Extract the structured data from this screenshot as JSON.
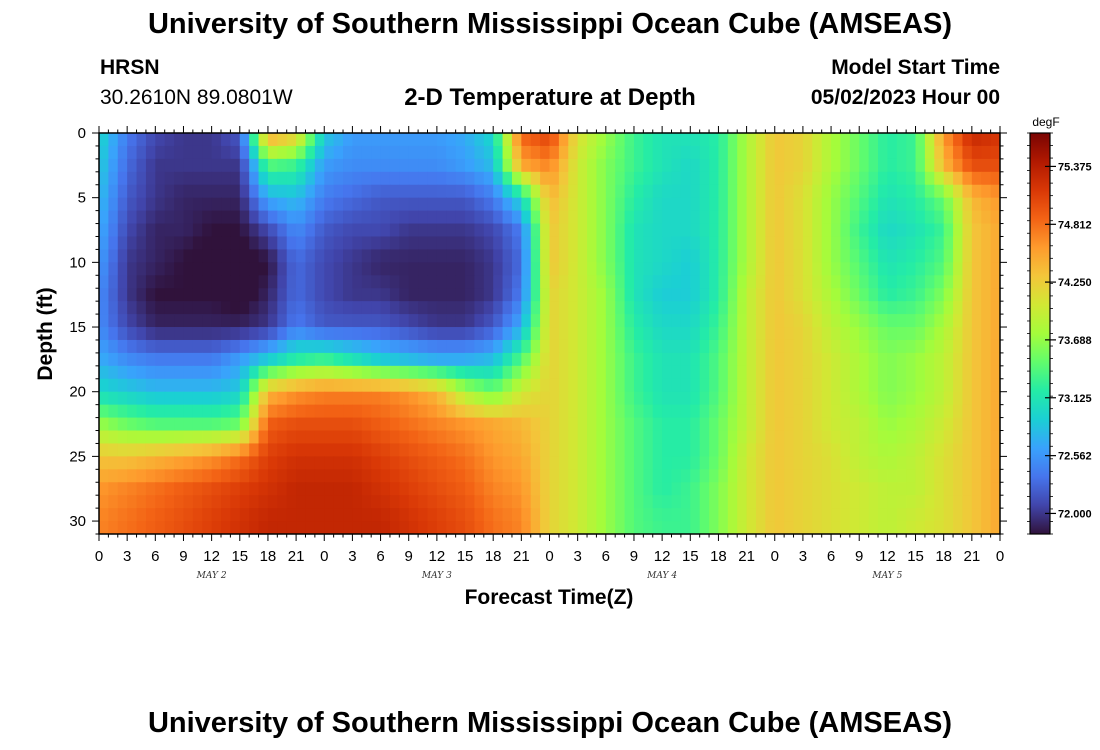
{
  "header": {
    "title": "University of Southern Mississippi Ocean Cube (AMSEAS)",
    "station": "HRSN",
    "coordinates": "30.2610N  89.0801W",
    "subtitle": "2-D Temperature at Depth",
    "model_start_label": "Model Start Time",
    "model_start_value": "05/02/2023 Hour 00"
  },
  "footer": {
    "title": "University of Southern Mississippi Ocean Cube (AMSEAS)"
  },
  "chart_data": {
    "type": "heatmap",
    "xlabel": "Forecast Time(Z)",
    "ylabel": "Depth (ft)",
    "x_tick_labels": [
      "0",
      "3",
      "6",
      "9",
      "12",
      "15",
      "18",
      "21",
      "0",
      "3",
      "6",
      "9",
      "12",
      "15",
      "18",
      "21",
      "0",
      "3",
      "6",
      "9",
      "12",
      "15",
      "18",
      "21",
      "0",
      "3",
      "6",
      "9",
      "12",
      "15",
      "18",
      "21",
      "0"
    ],
    "x_range_hours": [
      0,
      96
    ],
    "date_labels": [
      {
        "text": "MAY 2",
        "hour": 12
      },
      {
        "text": "MAY 3",
        "hour": 36
      },
      {
        "text": "MAY 4",
        "hour": 60
      },
      {
        "text": "MAY 5",
        "hour": 84
      }
    ],
    "y_ticks": [
      0,
      5,
      10,
      15,
      20,
      25,
      30
    ],
    "y_range": [
      0,
      31
    ],
    "y_inverted": true,
    "colorbar": {
      "unit": "degF",
      "min": 71.8,
      "max": 75.7,
      "tick_values": [
        72.0,
        72.562,
        73.125,
        73.688,
        74.25,
        74.812,
        75.375
      ],
      "tick_labels": [
        "72.000",
        "72.562",
        "73.125",
        "73.688",
        "74.250",
        "74.812",
        "75.375"
      ],
      "colors": [
        "#30123b",
        "#4145ab",
        "#4675ed",
        "#39a2fc",
        "#1bcfd4",
        "#24eca6",
        "#61fc6c",
        "#a4fc3b",
        "#d1e834",
        "#f3c63a",
        "#fe9b2d",
        "#f36315",
        "#d93806",
        "#b11901",
        "#7a0402"
      ]
    },
    "grid": false,
    "temperature_rows_degF": {
      "depths_ft": [
        0,
        2.5,
        5,
        7.5,
        10,
        12.5,
        15,
        17.5,
        20,
        22.5,
        25,
        27.5,
        30,
        31
      ],
      "hours": [
        0,
        3,
        6,
        9,
        12,
        15,
        18,
        21,
        24,
        27,
        30,
        33,
        36,
        39,
        42,
        45,
        48,
        51,
        54,
        57,
        60,
        63,
        66,
        69,
        72,
        75,
        78,
        81,
        84,
        87,
        90,
        93,
        96
      ],
      "values": [
        [
          73.0,
          72.4,
          72.1,
          72.0,
          72.0,
          72.2,
          74.6,
          74.3,
          72.9,
          72.6,
          72.6,
          72.6,
          72.6,
          72.7,
          73.0,
          74.9,
          75.1,
          74.1,
          73.7,
          73.3,
          73.1,
          73.1,
          73.2,
          73.8,
          74.3,
          74.2,
          73.8,
          73.5,
          73.2,
          73.3,
          74.6,
          75.3,
          75.2
        ],
        [
          72.9,
          72.3,
          72.0,
          72.0,
          72.0,
          72.0,
          73.4,
          73.3,
          72.6,
          72.5,
          72.5,
          72.5,
          72.5,
          72.6,
          72.8,
          74.5,
          74.7,
          74.0,
          73.6,
          73.3,
          73.1,
          73.0,
          73.2,
          73.8,
          74.3,
          74.2,
          73.8,
          73.5,
          73.2,
          73.3,
          74.4,
          75.0,
          75.0
        ],
        [
          72.8,
          72.2,
          72.0,
          71.9,
          71.9,
          71.9,
          72.7,
          72.8,
          72.4,
          72.3,
          72.2,
          72.2,
          72.2,
          72.2,
          72.4,
          73.0,
          74.4,
          74.0,
          73.6,
          73.2,
          73.0,
          73.0,
          73.2,
          73.8,
          74.3,
          74.1,
          73.7,
          73.4,
          73.1,
          73.2,
          73.5,
          74.4,
          74.6
        ],
        [
          72.7,
          72.1,
          71.9,
          71.9,
          71.8,
          71.8,
          72.1,
          72.5,
          72.2,
          72.1,
          72.1,
          72.0,
          72.0,
          72.0,
          72.1,
          72.4,
          74.3,
          74.0,
          73.6,
          73.1,
          73.0,
          73.0,
          73.2,
          73.8,
          74.3,
          74.1,
          73.7,
          73.3,
          73.0,
          73.1,
          73.3,
          74.3,
          74.5
        ],
        [
          72.6,
          72.0,
          71.9,
          71.8,
          71.7,
          71.7,
          71.8,
          72.3,
          72.1,
          72.0,
          71.9,
          71.9,
          71.9,
          71.9,
          72.0,
          72.3,
          74.3,
          74.0,
          73.6,
          73.1,
          73.0,
          72.9,
          73.2,
          73.8,
          74.3,
          74.1,
          73.7,
          73.4,
          73.1,
          73.2,
          73.4,
          74.3,
          74.5
        ],
        [
          72.5,
          72.0,
          71.8,
          71.8,
          71.8,
          71.7,
          71.9,
          72.3,
          72.1,
          72.0,
          72.0,
          71.9,
          71.9,
          71.9,
          72.0,
          72.4,
          74.2,
          74.0,
          73.7,
          73.1,
          72.9,
          72.9,
          73.2,
          73.9,
          74.3,
          74.1,
          73.8,
          73.5,
          73.2,
          73.3,
          73.6,
          74.3,
          74.5
        ],
        [
          72.5,
          72.1,
          71.9,
          71.9,
          71.9,
          71.9,
          72.0,
          72.4,
          72.2,
          72.2,
          72.2,
          72.1,
          72.0,
          72.0,
          72.2,
          72.7,
          74.2,
          74.0,
          73.7,
          73.2,
          73.0,
          73.0,
          73.3,
          73.9,
          74.3,
          74.2,
          73.9,
          73.7,
          73.5,
          73.5,
          73.8,
          74.3,
          74.5
        ],
        [
          72.7,
          72.5,
          72.4,
          72.4,
          72.4,
          72.6,
          72.9,
          73.2,
          73.3,
          73.1,
          72.9,
          72.8,
          72.7,
          72.7,
          72.8,
          73.4,
          74.2,
          74.0,
          73.7,
          73.3,
          73.1,
          73.1,
          73.4,
          73.9,
          74.3,
          74.2,
          74.0,
          73.8,
          73.6,
          73.7,
          73.9,
          74.3,
          74.5
        ],
        [
          73.0,
          72.9,
          72.8,
          72.8,
          72.8,
          72.9,
          74.4,
          74.6,
          74.7,
          74.7,
          74.7,
          74.6,
          74.4,
          73.8,
          73.5,
          74.0,
          74.2,
          74.0,
          73.7,
          73.3,
          73.1,
          73.1,
          73.4,
          73.9,
          74.3,
          74.2,
          74.0,
          73.8,
          73.6,
          73.7,
          73.9,
          74.3,
          74.5
        ],
        [
          73.7,
          73.5,
          73.4,
          73.4,
          73.4,
          73.5,
          74.9,
          75.0,
          75.0,
          75.0,
          74.9,
          74.8,
          74.7,
          74.6,
          74.5,
          74.4,
          74.2,
          74.0,
          73.7,
          73.4,
          73.2,
          73.2,
          73.5,
          73.9,
          74.3,
          74.2,
          74.0,
          73.9,
          73.7,
          73.8,
          74.0,
          74.3,
          74.5
        ],
        [
          74.3,
          74.3,
          74.4,
          74.5,
          74.6,
          74.8,
          75.1,
          75.2,
          75.2,
          75.2,
          75.1,
          75.0,
          74.9,
          74.8,
          74.6,
          74.5,
          74.2,
          74.0,
          73.7,
          73.4,
          73.2,
          73.2,
          73.5,
          74.0,
          74.3,
          74.2,
          74.1,
          73.9,
          73.8,
          73.9,
          74.1,
          74.3,
          74.5
        ],
        [
          74.6,
          74.7,
          74.8,
          74.9,
          75.0,
          75.1,
          75.2,
          75.3,
          75.3,
          75.3,
          75.2,
          75.1,
          75.0,
          74.9,
          74.7,
          74.6,
          74.2,
          74.0,
          73.7,
          73.4,
          73.2,
          73.3,
          73.6,
          74.0,
          74.3,
          74.2,
          74.1,
          74.0,
          73.9,
          73.9,
          74.1,
          74.3,
          74.5
        ],
        [
          74.7,
          74.8,
          74.9,
          75.0,
          75.1,
          75.2,
          75.3,
          75.3,
          75.3,
          75.3,
          75.3,
          75.2,
          75.1,
          75.0,
          74.8,
          74.7,
          74.2,
          74.0,
          73.7,
          73.4,
          73.3,
          73.3,
          73.6,
          74.0,
          74.3,
          74.2,
          74.1,
          74.0,
          73.9,
          74.0,
          74.1,
          74.3,
          74.5
        ],
        [
          74.7,
          74.8,
          74.9,
          75.0,
          75.1,
          75.2,
          75.3,
          75.3,
          75.3,
          75.3,
          75.3,
          75.2,
          75.1,
          75.0,
          74.8,
          74.7,
          74.2,
          74.0,
          73.7,
          73.4,
          73.3,
          73.3,
          73.6,
          74.0,
          74.3,
          74.2,
          74.1,
          74.0,
          73.9,
          74.0,
          74.1,
          74.3,
          74.5
        ]
      ]
    }
  }
}
